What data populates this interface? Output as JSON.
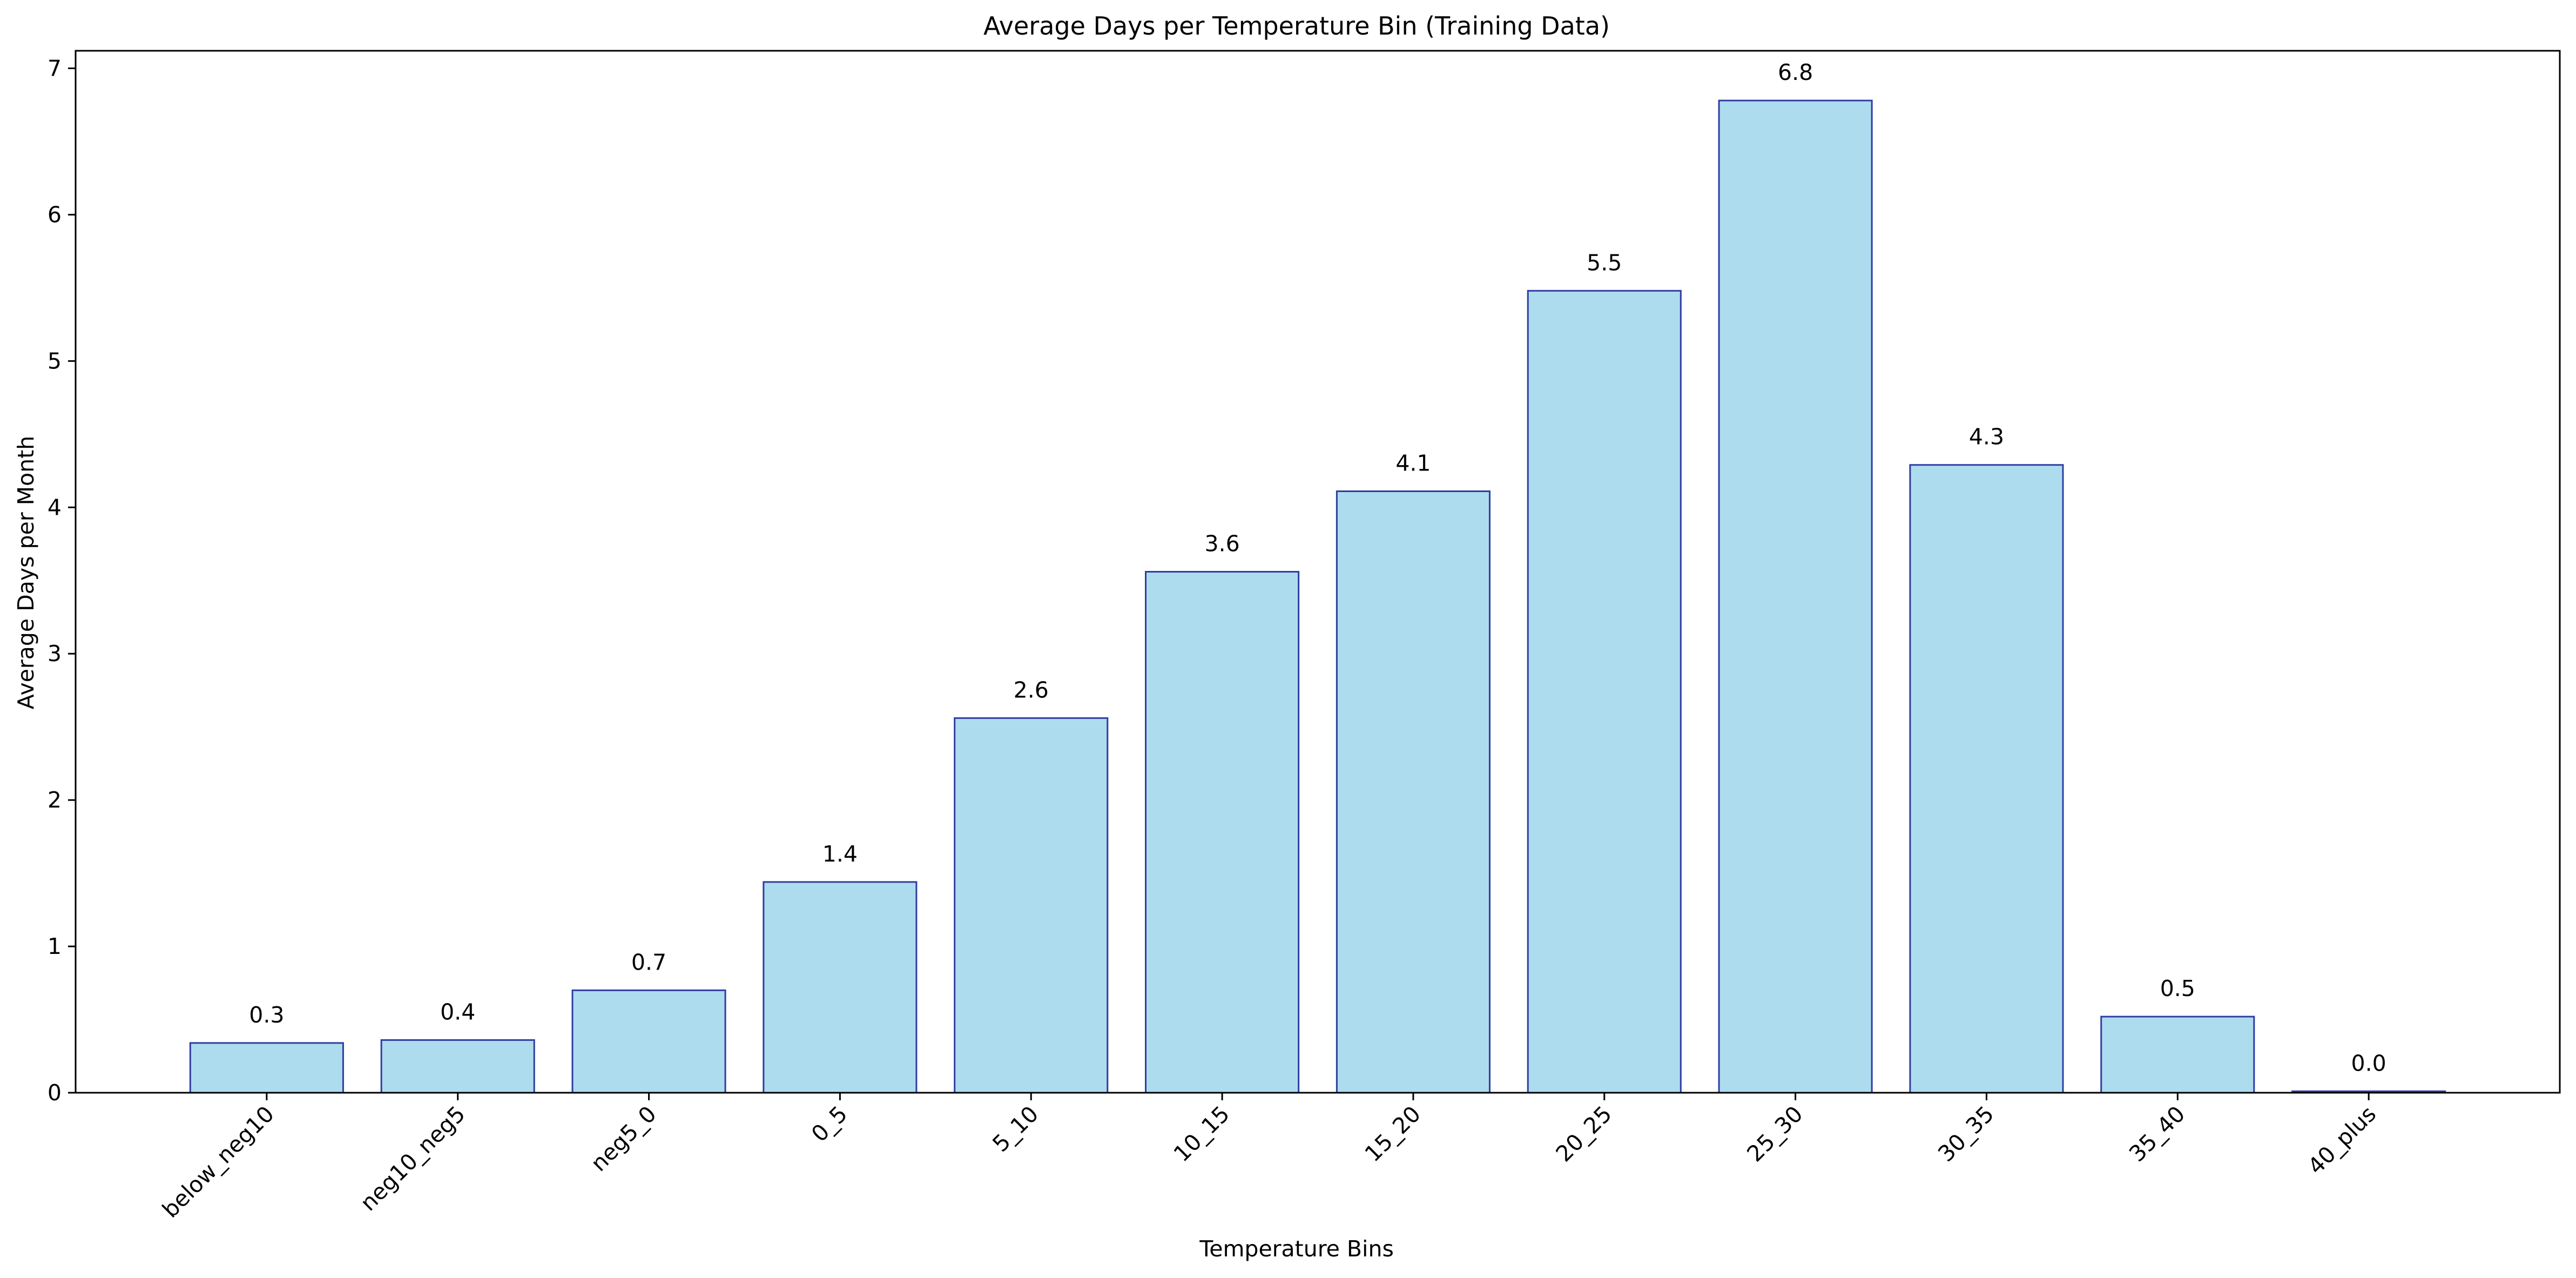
{
  "chart_data": {
    "type": "bar",
    "title": "Average Days per Temperature Bin (Training Data)",
    "xlabel": "Temperature Bins",
    "ylabel": "Average Days per Month",
    "categories": [
      "below_neg10",
      "neg10_neg5",
      "neg5_0",
      "0_5",
      "5_10",
      "10_15",
      "15_20",
      "20_25",
      "25_30",
      "30_35",
      "35_40",
      "40_plus"
    ],
    "values": [
      0.34,
      0.36,
      0.7,
      1.44,
      2.56,
      3.56,
      4.11,
      5.48,
      6.78,
      4.29,
      0.52,
      0.01
    ],
    "data_labels": [
      "0.3",
      "0.4",
      "0.7",
      "1.4",
      "2.6",
      "3.6",
      "4.1",
      "5.5",
      "6.8",
      "4.3",
      "0.5",
      "0.0"
    ],
    "yticks": [
      "0",
      "1",
      "2",
      "3",
      "4",
      "5",
      "6",
      "7"
    ],
    "ylim": [
      0,
      7.12
    ],
    "grid": false,
    "legend": "none",
    "colors": {
      "bar_fill": "#ADDCEE",
      "bar_edge": "#2F3DA3",
      "axis": "#000000"
    }
  }
}
